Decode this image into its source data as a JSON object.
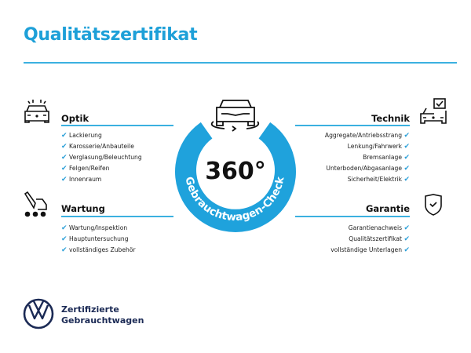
{
  "title": "Qualitätszertifikat",
  "badge": {
    "number": "360°",
    "arc_text": "Gebrauchtwagen-Check",
    "color": "#1fa2dc"
  },
  "sections": {
    "optik": {
      "heading": "Optik",
      "icon": "car-lights-icon",
      "items": [
        "Lackierung",
        "Karosserie/Anbauteile",
        "Verglasung/Beleuchtung",
        "Felgen/Reifen",
        "Innenraum"
      ]
    },
    "wartung": {
      "heading": "Wartung",
      "icon": "maintenance-icon",
      "items": [
        "Wartung/Inspektion",
        "Hauptuntersuchung",
        "vollständiges Zubehör"
      ]
    },
    "technik": {
      "heading": "Technik",
      "icon": "car-checklist-icon",
      "items": [
        "Aggregate/Antriebsstrang",
        "Lenkung/Fahrwerk",
        "Bremsanlage",
        "Unterboden/Abgasanlage",
        "Sicherheit/Elektrik"
      ]
    },
    "garantie": {
      "heading": "Garantie",
      "icon": "shield-check-icon",
      "items": [
        "Garantienachweis",
        "Qualitätszertifikat",
        "vollständige Unterlagen"
      ]
    }
  },
  "check_mark": "✔",
  "footer": {
    "line1": "Zertifizierte",
    "line2": "Gebrauchtwagen"
  }
}
